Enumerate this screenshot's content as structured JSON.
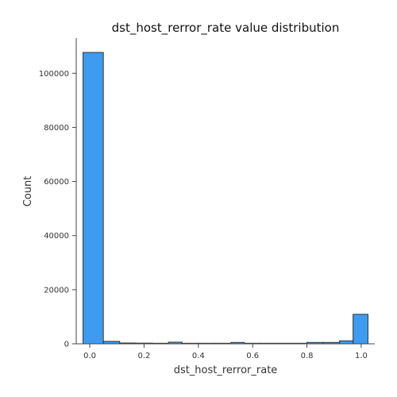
{
  "chart_data": {
    "type": "bar",
    "title": "dst_host_rerror_rate value distribution",
    "xlabel": "dst_host_rerror_rate",
    "ylabel": "Count",
    "xlim": [
      -0.05,
      1.05
    ],
    "ylim": [
      0,
      113000
    ],
    "xticks": [
      0.0,
      0.2,
      0.4,
      0.6,
      0.8,
      1.0
    ],
    "xtick_labels": [
      "0.0",
      "0.2",
      "0.4",
      "0.6",
      "0.8",
      "1.0"
    ],
    "yticks": [
      0,
      20000,
      40000,
      60000,
      80000,
      100000
    ],
    "ytick_labels": [
      "0",
      "20000",
      "40000",
      "60000",
      "80000",
      "100000"
    ],
    "bins": [
      {
        "x0": -0.025,
        "x1": 0.05,
        "value": 107700
      },
      {
        "x0": 0.05,
        "x1": 0.11,
        "value": 900
      },
      {
        "x0": 0.11,
        "x1": 0.17,
        "value": 300
      },
      {
        "x0": 0.17,
        "x1": 0.23,
        "value": 250
      },
      {
        "x0": 0.23,
        "x1": 0.29,
        "value": 200
      },
      {
        "x0": 0.29,
        "x1": 0.34,
        "value": 600
      },
      {
        "x0": 0.34,
        "x1": 0.4,
        "value": 200
      },
      {
        "x0": 0.4,
        "x1": 0.46,
        "value": 200
      },
      {
        "x0": 0.46,
        "x1": 0.52,
        "value": 200
      },
      {
        "x0": 0.52,
        "x1": 0.57,
        "value": 500
      },
      {
        "x0": 0.57,
        "x1": 0.63,
        "value": 200
      },
      {
        "x0": 0.63,
        "x1": 0.69,
        "value": 200
      },
      {
        "x0": 0.69,
        "x1": 0.75,
        "value": 200
      },
      {
        "x0": 0.75,
        "x1": 0.8,
        "value": 200
      },
      {
        "x0": 0.8,
        "x1": 0.86,
        "value": 500
      },
      {
        "x0": 0.86,
        "x1": 0.92,
        "value": 500
      },
      {
        "x0": 0.92,
        "x1": 0.97,
        "value": 1100
      },
      {
        "x0": 0.97,
        "x1": 1.025,
        "value": 10900
      }
    ],
    "bar_color": "#3d9bf0",
    "bar_edge_color": "#333333",
    "grid": false,
    "legend": "none"
  }
}
